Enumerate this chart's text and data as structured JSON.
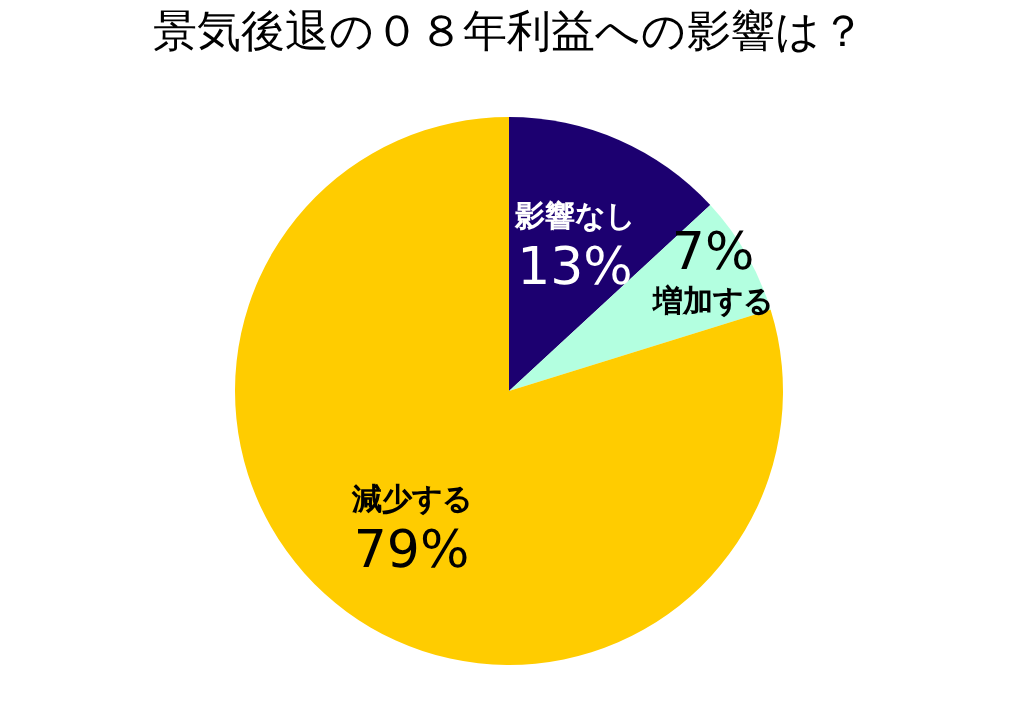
{
  "chart_data": {
    "type": "pie",
    "title": "景気後退の０８年利益への影響は？",
    "categories": [
      "影響なし",
      "増加する",
      "減少する"
    ],
    "values": [
      13,
      7,
      79
    ],
    "colors": [
      "#1c0070",
      "#b3ffe0",
      "#ffcc00"
    ],
    "value_labels": [
      "13%",
      "7%",
      "79%"
    ],
    "legend": false
  }
}
